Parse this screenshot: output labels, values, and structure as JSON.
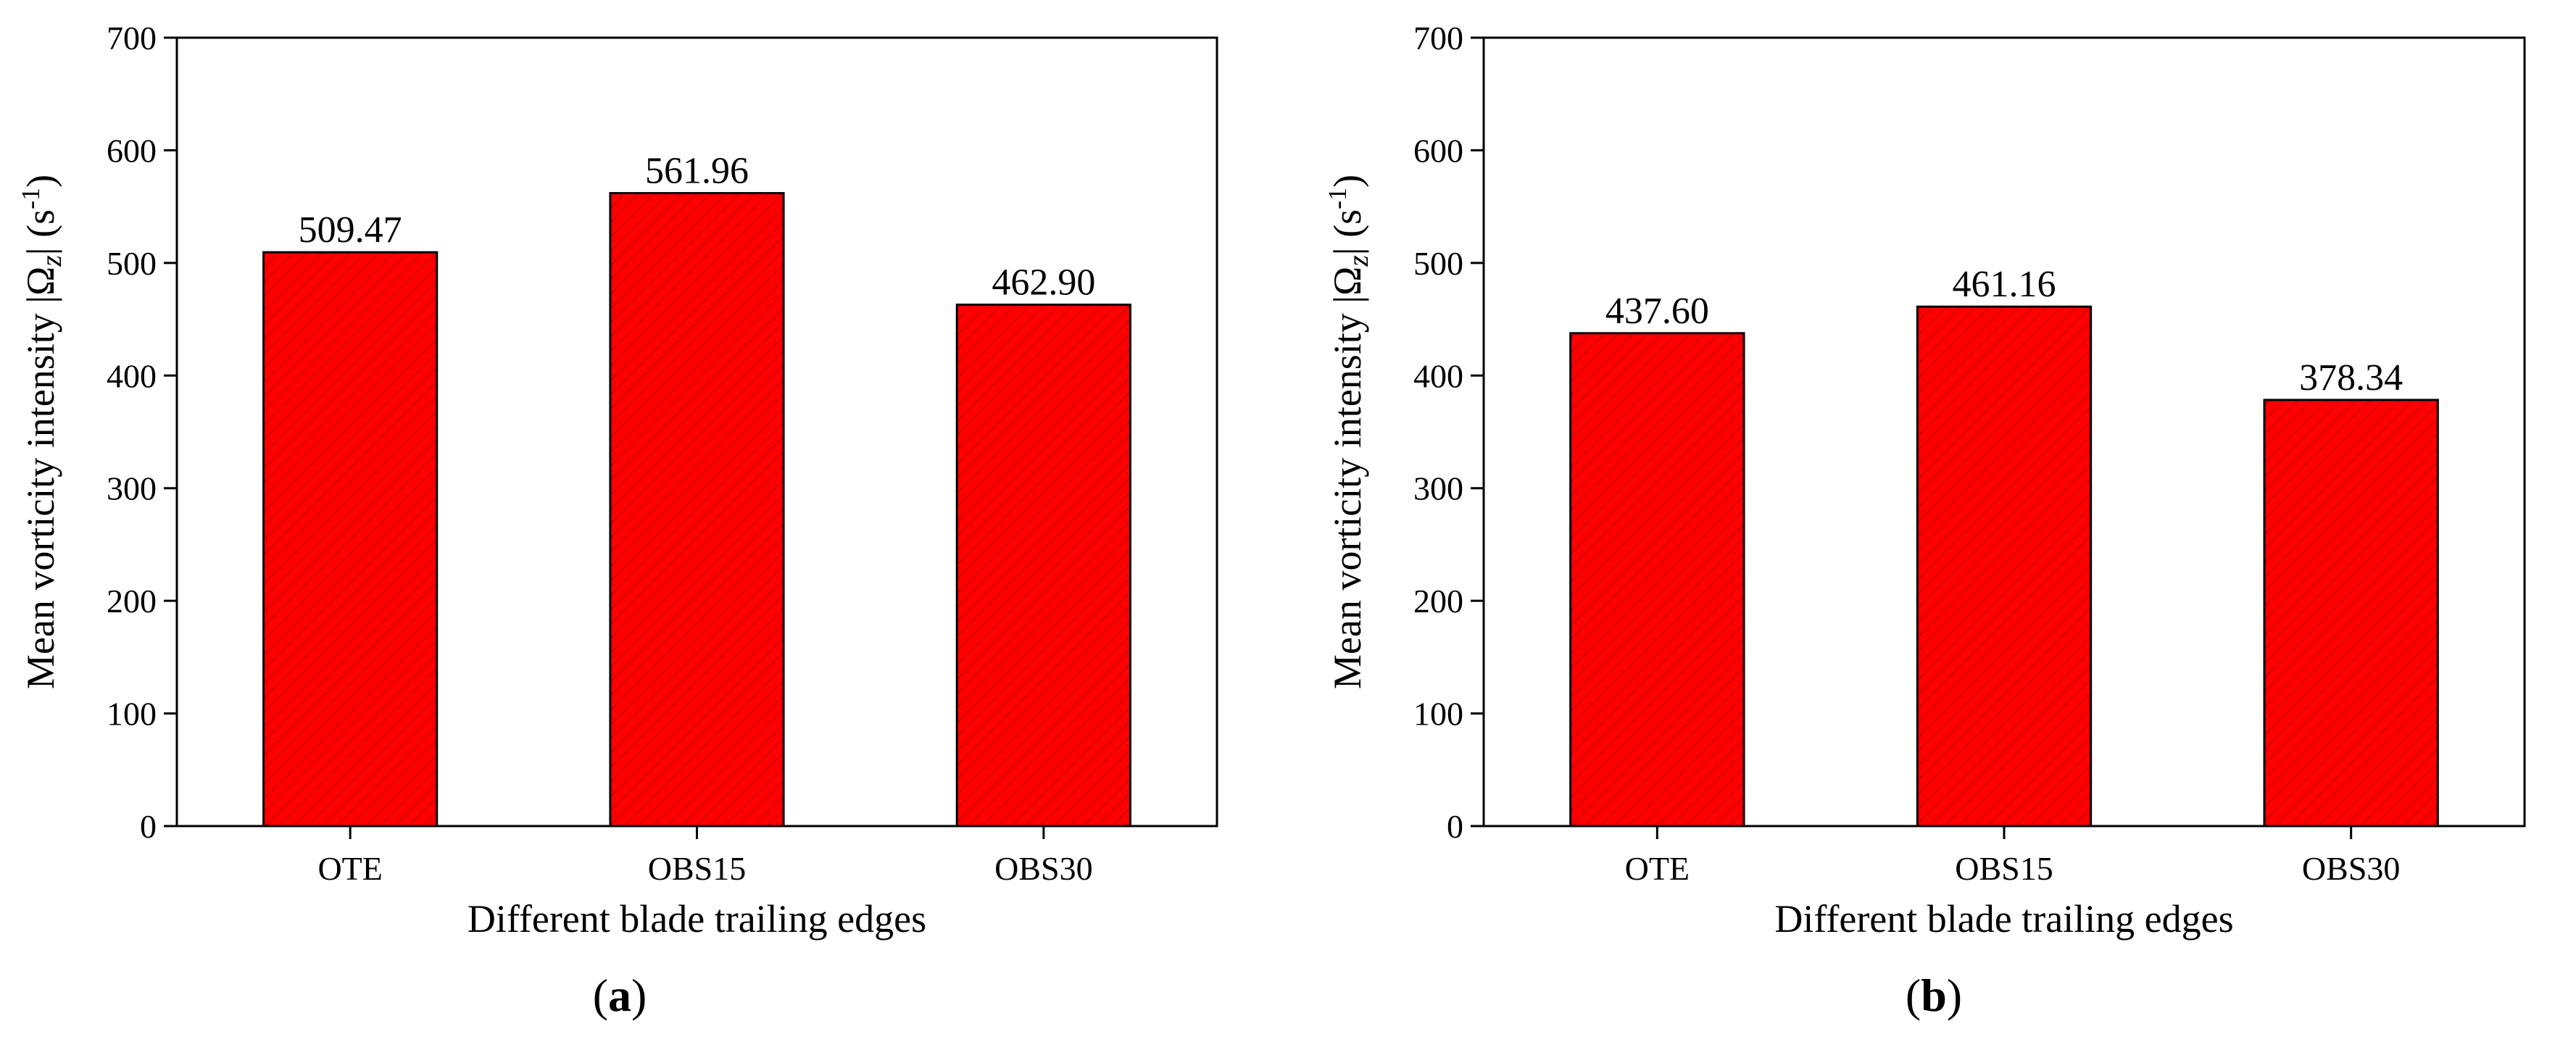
{
  "colors": {
    "bar_fill": "#ff0000",
    "bar_hatch": "#c80000",
    "axis": "#000000"
  },
  "chart_data": [
    {
      "type": "bar",
      "panel_label": "a",
      "categories": [
        "OTE",
        "OBS15",
        "OBS30"
      ],
      "values": [
        509.47,
        561.96,
        462.9
      ],
      "value_labels": [
        "509.47",
        "561.96",
        "462.90"
      ],
      "xlabel": "Different blade trailing edges",
      "ylabel_main": "Mean vorticity intensity |Ω",
      "ylabel_sub": "z",
      "ylabel_tail": "| (s",
      "ylabel_sup": "-1",
      "ylabel_close": ")",
      "ylim": [
        0,
        700
      ],
      "yticks": [
        0,
        100,
        200,
        300,
        400,
        500,
        600,
        700
      ],
      "ytick_labels": [
        "0",
        "100",
        "200",
        "300",
        "400",
        "500",
        "600",
        "700"
      ],
      "grid": false
    },
    {
      "type": "bar",
      "panel_label": "b",
      "categories": [
        "OTE",
        "OBS15",
        "OBS30"
      ],
      "values": [
        437.6,
        461.16,
        378.34
      ],
      "value_labels": [
        "437.60",
        "461.16",
        "378.34"
      ],
      "xlabel": "Different blade trailing edges",
      "ylabel_main": "Mean vorticity intensity |Ω",
      "ylabel_sub": "z",
      "ylabel_tail": "| (s",
      "ylabel_sup": "-1",
      "ylabel_close": ")",
      "ylim": [
        0,
        700
      ],
      "yticks": [
        0,
        100,
        200,
        300,
        400,
        500,
        600,
        700
      ],
      "ytick_labels": [
        "0",
        "100",
        "200",
        "300",
        "400",
        "500",
        "600",
        "700"
      ],
      "grid": false
    }
  ]
}
